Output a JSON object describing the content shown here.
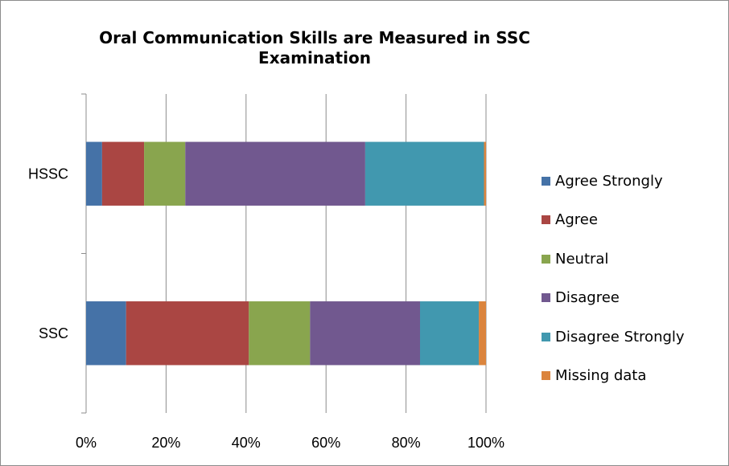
{
  "chart_data": {
    "type": "bar",
    "orientation": "horizontal",
    "stacked": "percent",
    "title": "Oral Communication Skills are Measured in SSC Examination",
    "categories": [
      "HSSC",
      "SSC"
    ],
    "xticks": [
      "0%",
      "20%",
      "40%",
      "60%",
      "80%",
      "100%"
    ],
    "xlim": [
      0,
      100
    ],
    "grid": "vertical",
    "legend_position": "right",
    "series": [
      {
        "name": "Agree Strongly",
        "color": "#4572a7",
        "values": [
          4,
          10
        ]
      },
      {
        "name": "Agree",
        "color": "#aa4643",
        "values": [
          10.5,
          30.7
        ]
      },
      {
        "name": "Neutral",
        "color": "#89a54e",
        "values": [
          10.3,
          15.3
        ]
      },
      {
        "name": "Disagree",
        "color": "#71588f",
        "values": [
          45,
          27.5
        ]
      },
      {
        "name": "Disagree Strongly",
        "color": "#4198af",
        "values": [
          29.7,
          14.7
        ]
      },
      {
        "name": "Missing data",
        "color": "#db843d",
        "values": [
          0.5,
          1.8
        ]
      }
    ]
  }
}
